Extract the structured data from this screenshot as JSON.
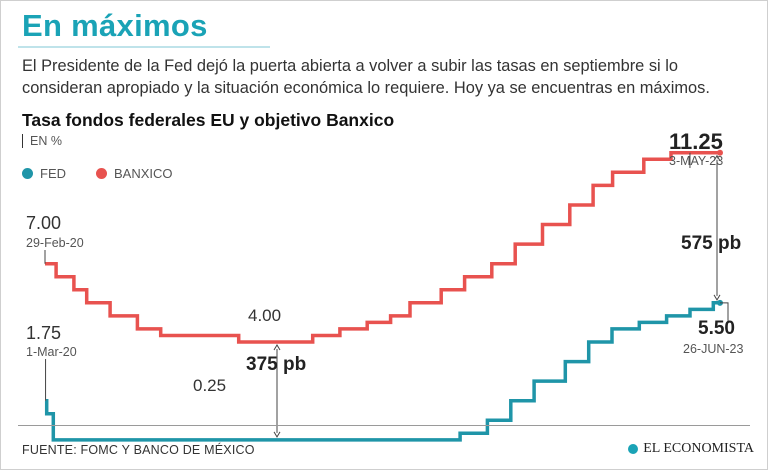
{
  "headline": "En máximos",
  "dek": "El Presidente de la Fed dejó la puerta abierta a volver a subir las tasas en septiembre si lo consideran apropiado y la situación económica lo requiere. Hoy ya se encuentras en máximos.",
  "source": "FUENTE: FOMC Y BANCO DE MÉXICO",
  "brand": "EL ECONOMISTA",
  "colors": {
    "fed": "#1f95a8",
    "banxico": "#e8524f",
    "accent": "#1aa3b6"
  },
  "chart_data": {
    "type": "line",
    "step": true,
    "title": "Tasa fondos federales EU y objetivo Banxico",
    "unit_label": "EN %",
    "xlabel": "",
    "ylabel": "",
    "ylim": [
      0,
      12
    ],
    "x_range": [
      "2020-02-29",
      "2023-06-26"
    ],
    "legend": [
      "FED",
      "BANXICO"
    ],
    "series": [
      {
        "name": "BANXICO",
        "steps": [
          {
            "date": "2020-02-29",
            "value": 7.0
          },
          {
            "date": "2020-03-20",
            "value": 6.5
          },
          {
            "date": "2020-04-21",
            "value": 6.0
          },
          {
            "date": "2020-05-14",
            "value": 5.5
          },
          {
            "date": "2020-06-25",
            "value": 5.0
          },
          {
            "date": "2020-08-13",
            "value": 4.5
          },
          {
            "date": "2020-09-24",
            "value": 4.25
          },
          {
            "date": "2021-02-11",
            "value": 4.0
          },
          {
            "date": "2021-06-24",
            "value": 4.25
          },
          {
            "date": "2021-08-12",
            "value": 4.5
          },
          {
            "date": "2021-09-30",
            "value": 4.75
          },
          {
            "date": "2021-11-11",
            "value": 5.0
          },
          {
            "date": "2021-12-16",
            "value": 5.5
          },
          {
            "date": "2022-02-10",
            "value": 6.0
          },
          {
            "date": "2022-03-24",
            "value": 6.5
          },
          {
            "date": "2022-05-12",
            "value": 7.0
          },
          {
            "date": "2022-06-23",
            "value": 7.75
          },
          {
            "date": "2022-08-11",
            "value": 8.5
          },
          {
            "date": "2022-09-29",
            "value": 9.25
          },
          {
            "date": "2022-11-10",
            "value": 10.0
          },
          {
            "date": "2022-12-15",
            "value": 10.5
          },
          {
            "date": "2023-02-09",
            "value": 11.0
          },
          {
            "date": "2023-03-30",
            "value": 11.25
          },
          {
            "date": "2023-06-26",
            "value": 11.25
          }
        ]
      },
      {
        "name": "FED",
        "steps": [
          {
            "date": "2020-03-01",
            "value": 1.75
          },
          {
            "date": "2020-03-03",
            "value": 1.25
          },
          {
            "date": "2020-03-15",
            "value": 0.25
          },
          {
            "date": "2022-03-16",
            "value": 0.5
          },
          {
            "date": "2022-05-04",
            "value": 1.0
          },
          {
            "date": "2022-06-15",
            "value": 1.75
          },
          {
            "date": "2022-07-27",
            "value": 2.5
          },
          {
            "date": "2022-09-21",
            "value": 3.25
          },
          {
            "date": "2022-11-02",
            "value": 4.0
          },
          {
            "date": "2022-12-14",
            "value": 4.5
          },
          {
            "date": "2023-02-01",
            "value": 4.75
          },
          {
            "date": "2023-03-22",
            "value": 5.0
          },
          {
            "date": "2023-05-03",
            "value": 5.25
          },
          {
            "date": "2023-06-14",
            "value": 5.5
          },
          {
            "date": "2023-06-26",
            "value": 5.5
          }
        ]
      }
    ],
    "annotations": {
      "banx_start_value": "7.00",
      "banx_start_date": "29-Feb-20",
      "fed_start_value": "1.75",
      "fed_start_date": "1-Mar-20",
      "banx_min": "4.00",
      "fed_min": "0.25",
      "banx_max_value": "11.25",
      "banx_max_date": "3-MAY-23",
      "fed_max_value": "5.50",
      "fed_max_date": "26-JUN-23",
      "gap_min": "375 pb",
      "gap_now": "575 pb"
    }
  }
}
